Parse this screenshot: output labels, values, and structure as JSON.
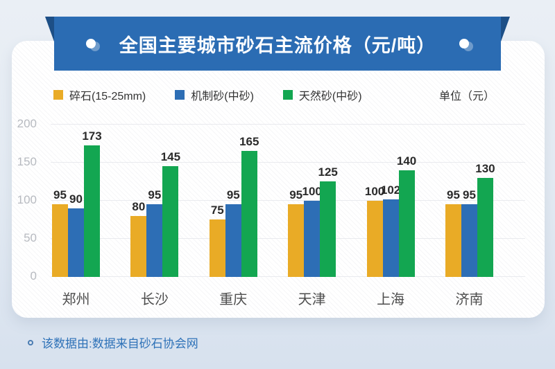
{
  "banner": {
    "title": "全国主要城市砂石主流价格（元/吨）",
    "bg_color": "#2b6cb3",
    "fold_color": "#1d4f86"
  },
  "legend": {
    "unit_label": "单位（元）"
  },
  "chart_data": {
    "type": "bar",
    "title": "全国主要城市砂石主流价格（元/吨）",
    "categories": [
      "郑州",
      "长沙",
      "重庆",
      "天津",
      "上海",
      "济南"
    ],
    "series": [
      {
        "name": "碎石(15-25mm)",
        "color": "#e9ab26",
        "values": [
          95,
          80,
          75,
          95,
          100,
          95
        ]
      },
      {
        "name": "机制砂(中砂)",
        "color": "#2d6eb5",
        "values": [
          90,
          95,
          95,
          100,
          102,
          95
        ]
      },
      {
        "name": "天然砂(中砂)",
        "color": "#13a651",
        "values": [
          173,
          145,
          165,
          125,
          140,
          130
        ]
      }
    ],
    "xlabel": "",
    "ylabel": "",
    "unit": "单位（元）",
    "ylim": [
      0,
      200
    ],
    "yticks": [
      0,
      50,
      100,
      150,
      200
    ],
    "grid": true,
    "legend_position": "top-left"
  },
  "footer": {
    "text": "该数据由:数据来自砂石协会网"
  }
}
